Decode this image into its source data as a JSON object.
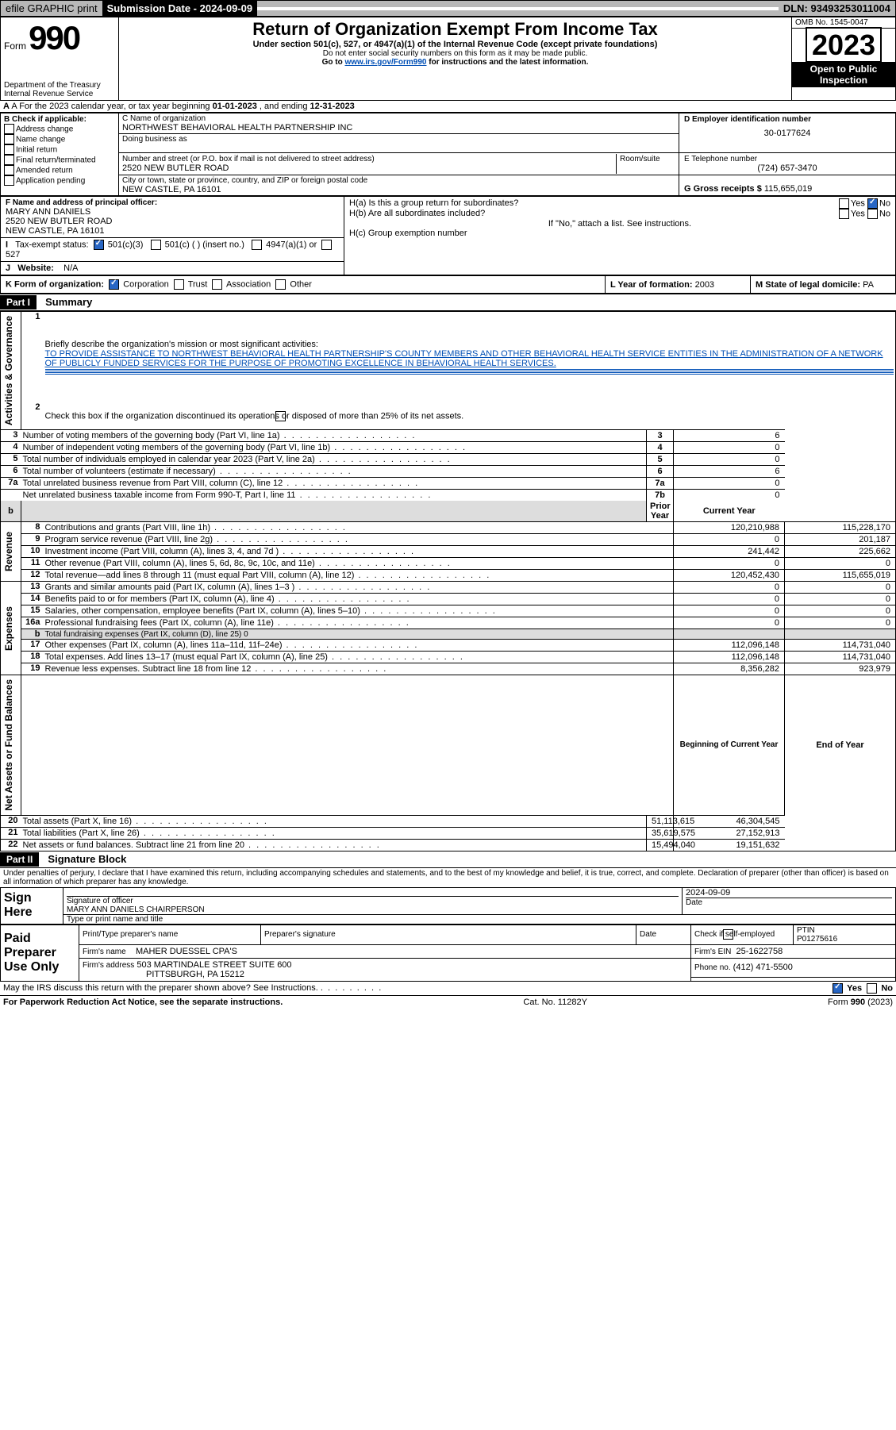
{
  "topbar": {
    "efile": "efile GRAPHIC print",
    "subdate_label": "Submission Date - 2024-09-09",
    "dln": "DLN: 93493253011004"
  },
  "header": {
    "form_label": "Form",
    "form_number": "990",
    "title": "Return of Organization Exempt From Income Tax",
    "subtitle": "Under section 501(c), 527, or 4947(a)(1) of the Internal Revenue Code (except private foundations)",
    "ssn_note": "Do not enter social security numbers on this form as it may be made public.",
    "instructions_pre": "Go to ",
    "instructions_link": "www.irs.gov/Form990",
    "instructions_post": " for instructions and the latest information.",
    "dept": "Department of the Treasury",
    "irs": "Internal Revenue Service",
    "omb": "OMB No. 1545-0047",
    "year": "2023",
    "otp": "Open to Public Inspection"
  },
  "section_a": {
    "text_pre": "A For the 2023 calendar year, or tax year beginning ",
    "begin": "01-01-2023",
    "mid": " , and ending ",
    "end": "12-31-2023"
  },
  "box_b": {
    "header": "B Check if applicable:",
    "items": [
      "Address change",
      "Name change",
      "Initial return",
      "Final return/terminated",
      "Amended return",
      "Application pending"
    ]
  },
  "box_c": {
    "name_label": "C Name of organization",
    "name": "NORTHWEST BEHAVIORAL HEALTH PARTNERSHIP INC",
    "dba": "Doing business as",
    "street_label": "Number and street (or P.O. box if mail is not delivered to street address)",
    "room": "Room/suite",
    "street": "2520 NEW BUTLER ROAD",
    "city_label": "City or town, state or province, country, and ZIP or foreign postal code",
    "city": "NEW CASTLE, PA  16101"
  },
  "box_d": {
    "label": "D Employer identification number",
    "ein": "30-0177624"
  },
  "box_e": {
    "label": "E Telephone number",
    "phone": "(724) 657-3470"
  },
  "box_g": {
    "label": "G Gross receipts $",
    "amount": "115,655,019"
  },
  "box_f": {
    "label": "F Name and address of principal officer:",
    "name": "MARY ANN DANIELS",
    "street": "2520 NEW BUTLER ROAD",
    "city": "NEW CASTLE, PA  16101"
  },
  "box_h": {
    "a": "H(a)  Is this a group return for subordinates?",
    "b": "H(b)  Are all subordinates included?",
    "yes": "Yes",
    "no": "No",
    "attach": "If \"No,\" attach a list. See instructions.",
    "c": "H(c)  Group exemption number"
  },
  "box_i": {
    "label": "Tax-exempt status:",
    "c3": "501(c)(3)",
    "c": "501(c) (  ) (insert no.)",
    "a1": "4947(a)(1) or",
    "s527": "527"
  },
  "box_j": {
    "label": "Website:",
    "value": "N/A"
  },
  "box_k": {
    "label": "K Form of organization:",
    "corp": "Corporation",
    "trust": "Trust",
    "assoc": "Association",
    "other": "Other"
  },
  "box_l": {
    "label": "L Year of formation:",
    "value": "2003"
  },
  "box_m": {
    "label": "M State of legal domicile:",
    "value": "PA"
  },
  "part1": {
    "num": "Part I",
    "title": "Summary"
  },
  "summary": {
    "q1": "Briefly describe the organization's mission or most significant activities:",
    "mission": "TO PROVIDE ASSISTANCE TO NORTHWEST BEHAVIORAL HEALTH PARTNERSHIP'S COUNTY MEMBERS AND OTHER BEHAVIORAL HEALTH SERVICE ENTITIES IN THE ADMINISTRATION OF A NETWORK OF PUBLICLY FUNDED SERVICES FOR THE PURPOSE OF PROMOTING EXCELLENCE IN BEHAVIORAL HEALTH SERVICES.",
    "q2": "Check this box      if the organization discontinued its operations or disposed of more than 25% of its net assets.",
    "lines_ag": [
      {
        "n": "3",
        "t": "Number of voting members of the governing body (Part VI, line 1a)",
        "b": "3",
        "v": "6"
      },
      {
        "n": "4",
        "t": "Number of independent voting members of the governing body (Part VI, line 1b)",
        "b": "4",
        "v": "0"
      },
      {
        "n": "5",
        "t": "Total number of individuals employed in calendar year 2023 (Part V, line 2a)",
        "b": "5",
        "v": "0"
      },
      {
        "n": "6",
        "t": "Total number of volunteers (estimate if necessary)",
        "b": "6",
        "v": "6"
      },
      {
        "n": "7a",
        "t": "Total unrelated business revenue from Part VIII, column (C), line 12",
        "b": "7a",
        "v": "0"
      },
      {
        "n": "",
        "t": "Net unrelated business taxable income from Form 990-T, Part I, line 11",
        "b": "7b",
        "v": "0"
      }
    ],
    "col_prior": "Prior Year",
    "col_current": "Current Year",
    "lines_rev": [
      {
        "n": "8",
        "t": "Contributions and grants (Part VIII, line 1h)",
        "p": "120,210,988",
        "c": "115,228,170"
      },
      {
        "n": "9",
        "t": "Program service revenue (Part VIII, line 2g)",
        "p": "0",
        "c": "201,187"
      },
      {
        "n": "10",
        "t": "Investment income (Part VIII, column (A), lines 3, 4, and 7d )",
        "p": "241,442",
        "c": "225,662"
      },
      {
        "n": "11",
        "t": "Other revenue (Part VIII, column (A), lines 5, 6d, 8c, 9c, 10c, and 11e)",
        "p": "0",
        "c": "0"
      },
      {
        "n": "12",
        "t": "Total revenue—add lines 8 through 11 (must equal Part VIII, column (A), line 12)",
        "p": "120,452,430",
        "c": "115,655,019"
      }
    ],
    "lines_exp": [
      {
        "n": "13",
        "t": "Grants and similar amounts paid (Part IX, column (A), lines 1–3 )",
        "p": "0",
        "c": "0"
      },
      {
        "n": "14",
        "t": "Benefits paid to or for members (Part IX, column (A), line 4)",
        "p": "0",
        "c": "0"
      },
      {
        "n": "15",
        "t": "Salaries, other compensation, employee benefits (Part IX, column (A), lines 5–10)",
        "p": "0",
        "c": "0"
      },
      {
        "n": "16a",
        "t": "Professional fundraising fees (Part IX, column (A), line 11e)",
        "p": "0",
        "c": "0"
      },
      {
        "n": "b",
        "t": "Total fundraising expenses (Part IX, column (D), line 25) 0",
        "p": "",
        "c": ""
      },
      {
        "n": "17",
        "t": "Other expenses (Part IX, column (A), lines 11a–11d, 11f–24e)",
        "p": "112,096,148",
        "c": "114,731,040"
      },
      {
        "n": "18",
        "t": "Total expenses. Add lines 13–17 (must equal Part IX, column (A), line 25)",
        "p": "112,096,148",
        "c": "114,731,040"
      },
      {
        "n": "19",
        "t": "Revenue less expenses. Subtract line 18 from line 12",
        "p": "8,356,282",
        "c": "923,979"
      }
    ],
    "col_begin": "Beginning of Current Year",
    "col_end": "End of Year",
    "lines_na": [
      {
        "n": "20",
        "t": "Total assets (Part X, line 16)",
        "p": "51,113,615",
        "c": "46,304,545"
      },
      {
        "n": "21",
        "t": "Total liabilities (Part X, line 26)",
        "p": "35,619,575",
        "c": "27,152,913"
      },
      {
        "n": "22",
        "t": "Net assets or fund balances. Subtract line 21 from line 20",
        "p": "15,494,040",
        "c": "19,151,632"
      }
    ],
    "vlabels": {
      "ag": "Activities & Governance",
      "rev": "Revenue",
      "exp": "Expenses",
      "na": "Net Assets or Fund Balances"
    }
  },
  "part2": {
    "num": "Part II",
    "title": "Signature Block",
    "perjury": "Under penalties of perjury, I declare that I have examined this return, including accompanying schedules and statements, and to the best of my knowledge and belief, it is true, correct, and complete. Declaration of preparer (other than officer) is based on all information of which preparer has any knowledge."
  },
  "sign": {
    "here": "Sign Here",
    "sig_label": "Signature of officer",
    "officer": "MARY ANN DANIELS CHAIRPERSON",
    "type_label": "Type or print name and title",
    "date_label": "Date",
    "date": "2024-09-09"
  },
  "paid": {
    "title": "Paid Preparer Use Only",
    "print_label": "Print/Type preparer's name",
    "sig_label": "Preparer's signature",
    "date_label": "Date",
    "check_label": "Check        if self-employed",
    "ptin_label": "PTIN",
    "ptin": "P01275616",
    "firm_name_label": "Firm's name",
    "firm_name": "MAHER DUESSEL CPA'S",
    "firm_ein_label": "Firm's EIN",
    "firm_ein": "25-1622758",
    "firm_addr_label": "Firm's address",
    "firm_addr1": "503 MARTINDALE STREET SUITE 600",
    "firm_addr2": "PITTSBURGH, PA  15212",
    "phone_label": "Phone no.",
    "phone": "(412) 471-5500"
  },
  "discuss": {
    "text": "May the IRS discuss this return with the preparer shown above? See Instructions.",
    "yes": "Yes",
    "no": "No"
  },
  "footer": {
    "pra": "For Paperwork Reduction Act Notice, see the separate instructions.",
    "cat": "Cat. No. 11282Y",
    "form": "Form 990 (2023)"
  }
}
